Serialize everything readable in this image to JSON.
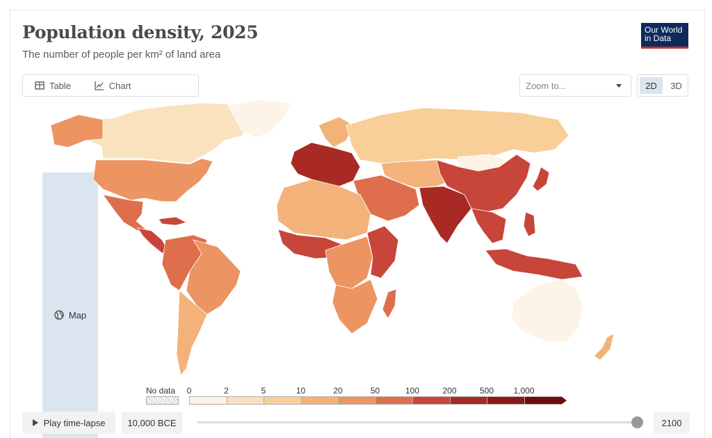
{
  "header": {
    "title": "Population density, 2025",
    "subtitle": "The number of people per km² of land area"
  },
  "logo": {
    "line1": "Our World",
    "line2": "in Data"
  },
  "tabs": [
    {
      "label": "Table",
      "icon": "table-icon",
      "active": false
    },
    {
      "label": "Map",
      "icon": "globe-icon",
      "active": true
    },
    {
      "label": "Chart",
      "icon": "line-chart-icon",
      "active": false
    }
  ],
  "zoom": {
    "placeholder": "Zoom to..."
  },
  "projection": {
    "options": [
      "2D",
      "3D"
    ],
    "selected": "2D"
  },
  "legend": {
    "no_data_label": "No data",
    "bins": [
      {
        "label": "0",
        "color": "#fdf3e6"
      },
      {
        "label": "2",
        "color": "#fae2bf"
      },
      {
        "label": "5",
        "color": "#f8cf98"
      },
      {
        "label": "10",
        "color": "#f3b27a"
      },
      {
        "label": "20",
        "color": "#ec9462"
      },
      {
        "label": "50",
        "color": "#df6e4c"
      },
      {
        "label": "100",
        "color": "#c8453a"
      },
      {
        "label": "200",
        "color": "#a92a24"
      },
      {
        "label": "500",
        "color": "#8b1a14"
      },
      {
        "label": "1,000",
        "color": "#6e0e0a"
      }
    ]
  },
  "timeline": {
    "play_label": "Play time-lapse",
    "start_label": "10,000 BCE",
    "end_label": "2100",
    "position": 1.0
  },
  "map_regions": [
    {
      "name": "north-america-north",
      "bin": 1
    },
    {
      "name": "greenland",
      "bin": 0
    },
    {
      "name": "united-states",
      "bin": 4
    },
    {
      "name": "mexico",
      "bin": 5
    },
    {
      "name": "central-america",
      "bin": 6
    },
    {
      "name": "south-america-north",
      "bin": 5
    },
    {
      "name": "brazil",
      "bin": 4
    },
    {
      "name": "argentina",
      "bin": 3
    },
    {
      "name": "europe-west",
      "bin": 7
    },
    {
      "name": "scandinavia",
      "bin": 3
    },
    {
      "name": "russia",
      "bin": 2
    },
    {
      "name": "middle-east",
      "bin": 5
    },
    {
      "name": "north-africa",
      "bin": 3
    },
    {
      "name": "west-africa",
      "bin": 6
    },
    {
      "name": "central-africa",
      "bin": 4
    },
    {
      "name": "east-africa",
      "bin": 6
    },
    {
      "name": "southern-africa",
      "bin": 4
    },
    {
      "name": "central-asia",
      "bin": 3
    },
    {
      "name": "india",
      "bin": 7
    },
    {
      "name": "china",
      "bin": 6
    },
    {
      "name": "mongolia",
      "bin": 0
    },
    {
      "name": "japan",
      "bin": 6
    },
    {
      "name": "southeast-asia",
      "bin": 6
    },
    {
      "name": "indonesia",
      "bin": 6
    },
    {
      "name": "australia",
      "bin": 0
    },
    {
      "name": "new-zealand",
      "bin": 3
    },
    {
      "name": "madagascar",
      "bin": 5
    }
  ]
}
